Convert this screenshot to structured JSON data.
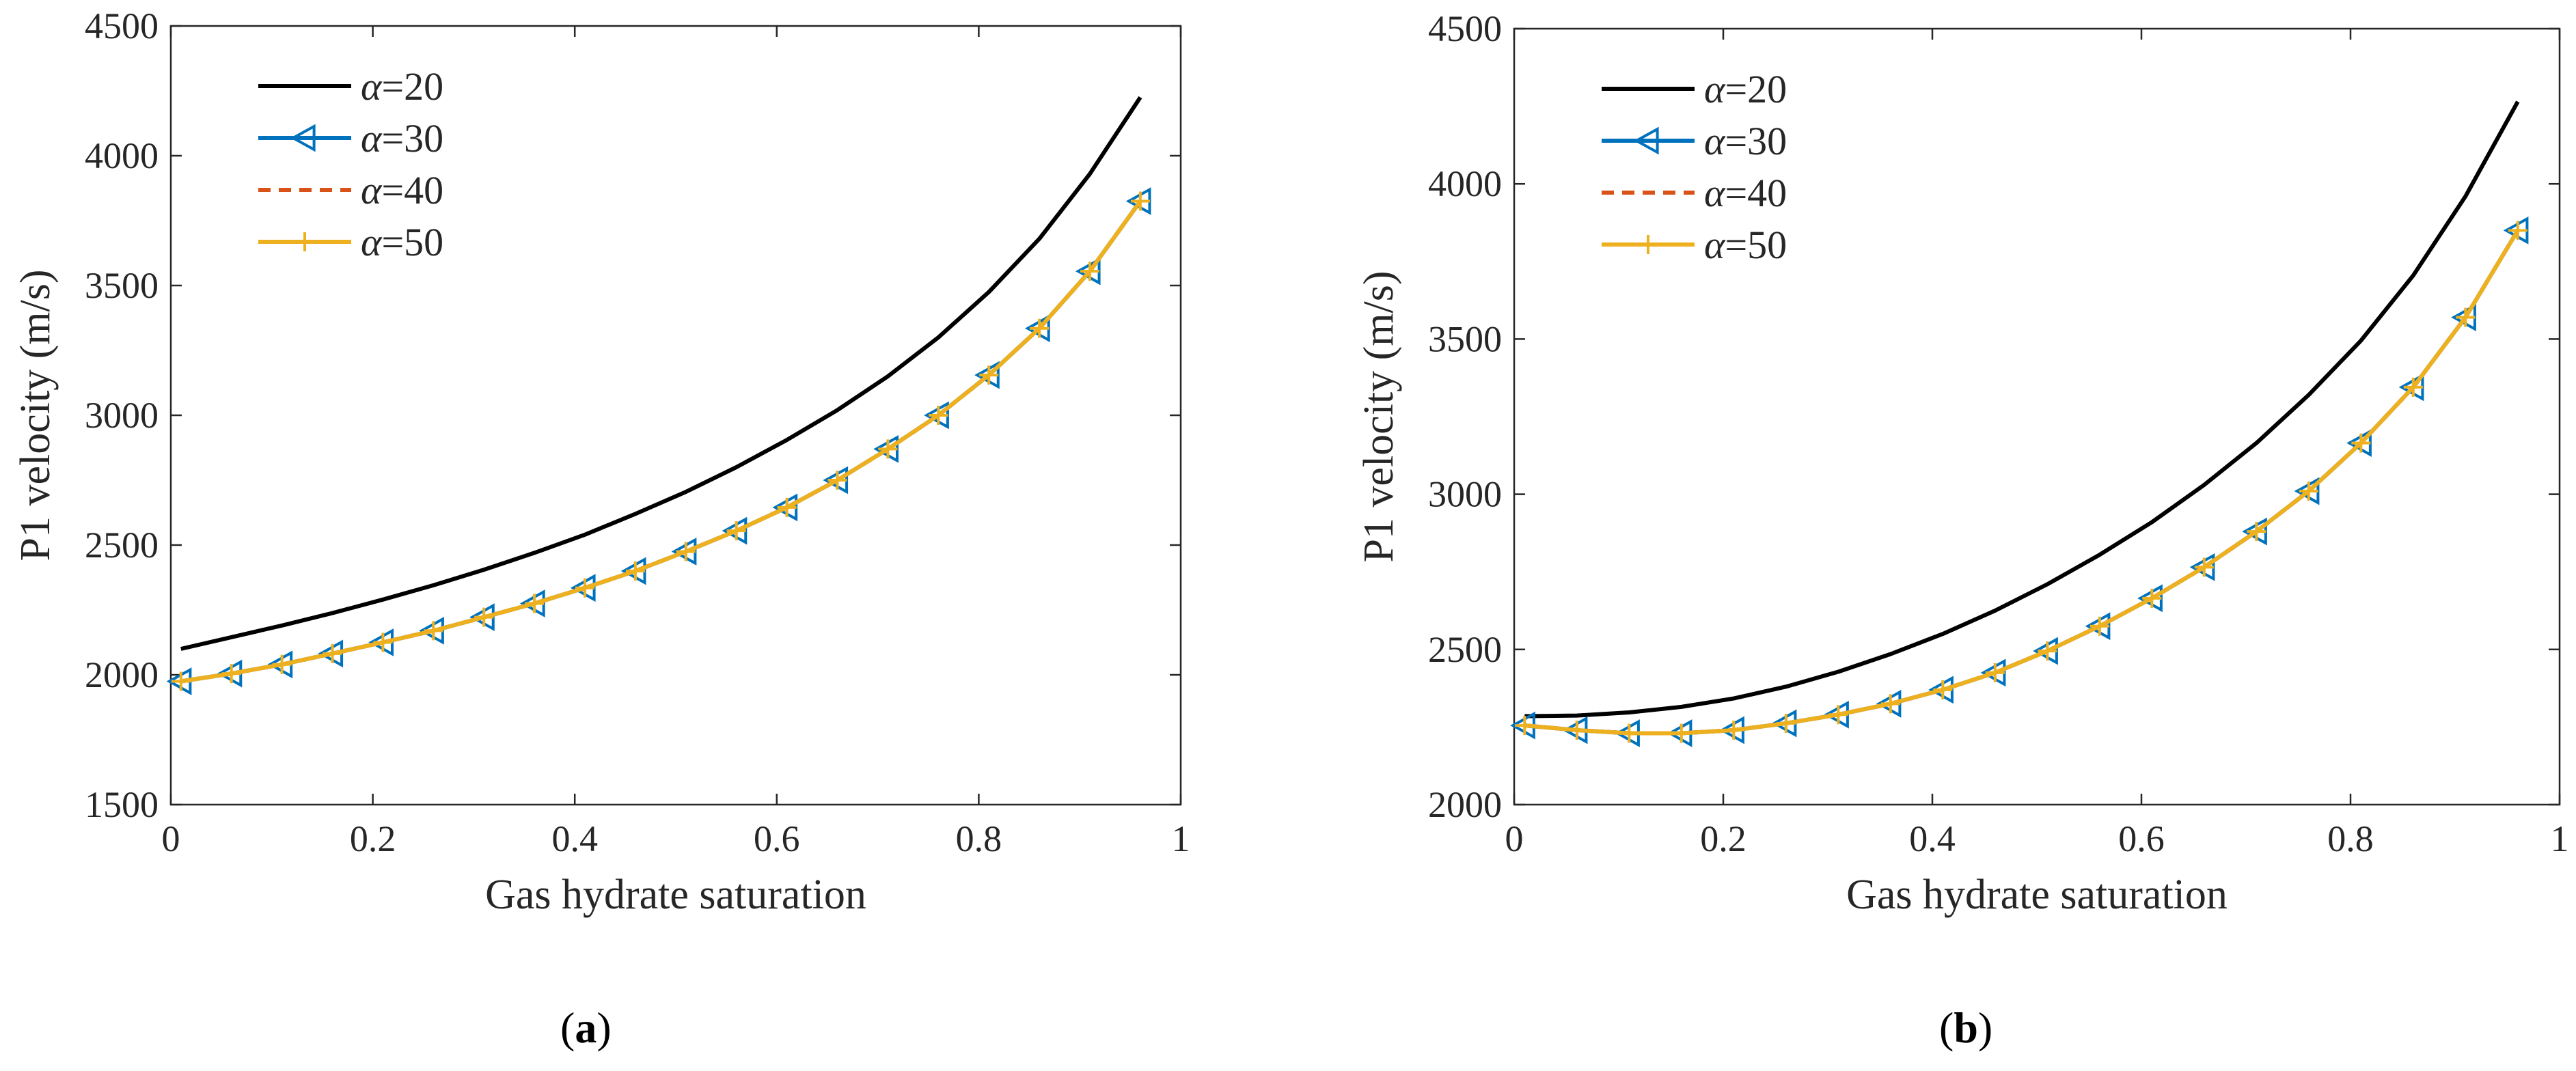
{
  "chart_data": [
    {
      "type": "line",
      "panel_label": "a",
      "xlabel": "Gas hydrate saturation",
      "ylabel": "P1 velocity (m/s)",
      "xlim": [
        0,
        1
      ],
      "ylim": [
        1500,
        4500
      ],
      "xticks": [
        0,
        0.2,
        0.4,
        0.6,
        0.8,
        1
      ],
      "xtick_labels": [
        "0",
        "0.2",
        "0.4",
        "0.6",
        "0.8",
        "1"
      ],
      "yticks": [
        1500,
        2000,
        2500,
        3000,
        3500,
        4000,
        4500
      ],
      "ytick_labels": [
        "1500",
        "2000",
        "2500",
        "3000",
        "3500",
        "4000",
        "4500"
      ],
      "legend_position": "top-left",
      "x": [
        0.01,
        0.06,
        0.11,
        0.16,
        0.21,
        0.26,
        0.31,
        0.36,
        0.41,
        0.46,
        0.51,
        0.56,
        0.61,
        0.66,
        0.71,
        0.76,
        0.81,
        0.86,
        0.91,
        0.96
      ],
      "series": [
        {
          "name": "α=20",
          "greek": "α",
          "suffix": "=20",
          "color": "#000000",
          "style": "solid",
          "marker": "none",
          "values": [
            2100,
            2145,
            2190,
            2238,
            2290,
            2345,
            2405,
            2470,
            2540,
            2620,
            2705,
            2800,
            2905,
            3020,
            3150,
            3300,
            3475,
            3680,
            3930,
            4225
          ]
        },
        {
          "name": "α=30",
          "greek": "α",
          "suffix": "=30",
          "color": "#0072bd",
          "style": "solid",
          "marker": "triangle-left",
          "values": [
            1975,
            2005,
            2040,
            2082,
            2125,
            2170,
            2222,
            2275,
            2335,
            2400,
            2475,
            2555,
            2645,
            2750,
            2870,
            3000,
            3155,
            3335,
            3555,
            3825
          ]
        },
        {
          "name": "α=40",
          "greek": "α",
          "suffix": "=40",
          "color": "#d95319",
          "style": "dashed",
          "marker": "none",
          "values": [
            1975,
            2005,
            2040,
            2082,
            2125,
            2170,
            2222,
            2275,
            2335,
            2400,
            2475,
            2555,
            2645,
            2750,
            2870,
            3000,
            3155,
            3335,
            3555,
            3825
          ]
        },
        {
          "name": "α=50",
          "greek": "α",
          "suffix": "=50",
          "color": "#edb120",
          "style": "solid",
          "marker": "plus",
          "values": [
            1975,
            2005,
            2040,
            2082,
            2125,
            2170,
            2222,
            2275,
            2335,
            2400,
            2475,
            2555,
            2645,
            2750,
            2870,
            3000,
            3155,
            3335,
            3555,
            3825
          ]
        }
      ]
    },
    {
      "type": "line",
      "panel_label": "b",
      "xlabel": "Gas hydrate saturation",
      "ylabel": "P1 velocity (m/s)",
      "xlim": [
        0,
        1
      ],
      "ylim": [
        2000,
        4500
      ],
      "xticks": [
        0,
        0.2,
        0.4,
        0.6,
        0.8,
        1
      ],
      "xtick_labels": [
        "0",
        "0.2",
        "0.4",
        "0.6",
        "0.8",
        "1"
      ],
      "yticks": [
        2000,
        2500,
        3000,
        3500,
        4000,
        4500
      ],
      "ytick_labels": [
        "2000",
        "2500",
        "3000",
        "3500",
        "4000",
        "4500"
      ],
      "legend_position": "top-left",
      "x": [
        0.01,
        0.06,
        0.11,
        0.16,
        0.21,
        0.26,
        0.31,
        0.36,
        0.41,
        0.46,
        0.51,
        0.56,
        0.61,
        0.66,
        0.71,
        0.76,
        0.81,
        0.86,
        0.91,
        0.96
      ],
      "series": [
        {
          "name": "α=20",
          "greek": "α",
          "suffix": "=20",
          "color": "#000000",
          "style": "solid",
          "marker": "none",
          "values": [
            2285,
            2287,
            2297,
            2315,
            2342,
            2380,
            2428,
            2485,
            2550,
            2625,
            2710,
            2805,
            2910,
            3030,
            3165,
            3320,
            3495,
            3705,
            3960,
            4265
          ]
        },
        {
          "name": "α=30",
          "greek": "α",
          "suffix": "=30",
          "color": "#0072bd",
          "style": "solid",
          "marker": "triangle-left",
          "values": [
            2255,
            2240,
            2230,
            2230,
            2240,
            2262,
            2290,
            2325,
            2370,
            2425,
            2495,
            2575,
            2665,
            2765,
            2880,
            3010,
            3165,
            3345,
            3570,
            3850
          ]
        },
        {
          "name": "α=40",
          "greek": "α",
          "suffix": "=40",
          "color": "#d95319",
          "style": "dashed",
          "marker": "none",
          "values": [
            2255,
            2240,
            2230,
            2230,
            2240,
            2262,
            2290,
            2325,
            2370,
            2425,
            2495,
            2575,
            2665,
            2765,
            2880,
            3010,
            3165,
            3345,
            3570,
            3850
          ]
        },
        {
          "name": "α=50",
          "greek": "α",
          "suffix": "=50",
          "color": "#edb120",
          "style": "solid",
          "marker": "plus",
          "values": [
            2255,
            2240,
            2230,
            2230,
            2240,
            2262,
            2290,
            2325,
            2370,
            2425,
            2495,
            2575,
            2665,
            2765,
            2880,
            3010,
            3165,
            3345,
            3570,
            3850
          ]
        }
      ]
    }
  ]
}
